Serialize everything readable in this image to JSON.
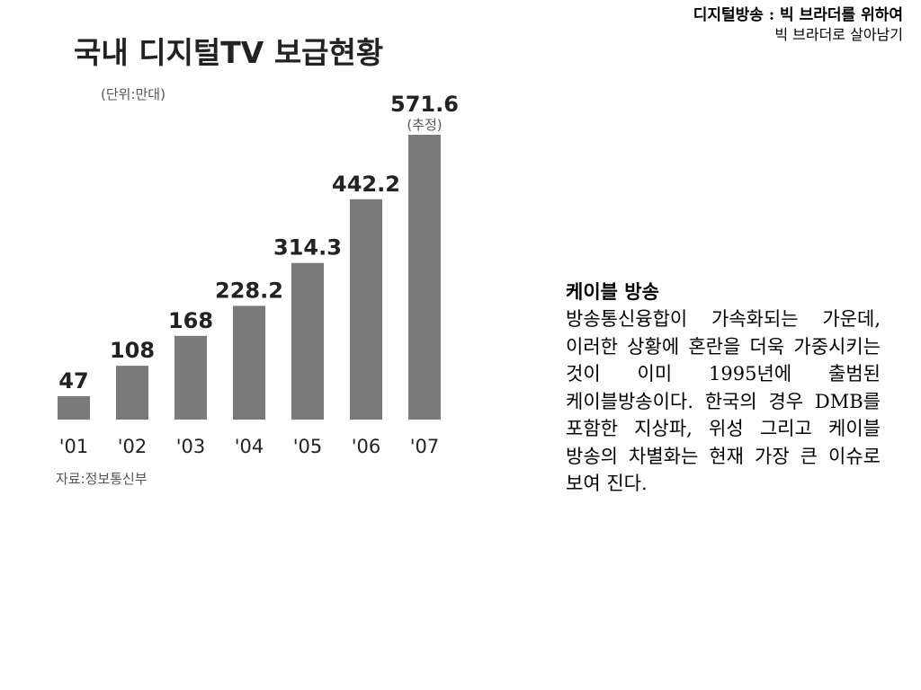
{
  "header": {
    "title": "디지털방송 : 빅 브라더를 위하여",
    "subtitle": "빅 브라더로 살아남기"
  },
  "chart_data": {
    "type": "bar",
    "title": "국내 디지털TV 보급현황",
    "unit_note": "(단위:만대)",
    "source": "자료:정보통신부",
    "categories": [
      "'01",
      "'02",
      "'03",
      "'04",
      "'05",
      "'06",
      "'07"
    ],
    "values": [
      47,
      108,
      168,
      228.2,
      314.3,
      442.2,
      571.6
    ],
    "value_labels": [
      "47",
      "108",
      "168",
      "228.2",
      "314.3",
      "442.2",
      "571.6"
    ],
    "estimate_note": "(추정)",
    "estimate_index": 6,
    "ylim": [
      0,
      571.6
    ],
    "grid": false,
    "colors": {
      "bar": "#7a7a7a",
      "text": "#222222",
      "muted": "#555555"
    }
  },
  "side": {
    "heading": "케이블 방송",
    "body": "방송통신융합이 가속화되는 가운데, 이러한 상황에 혼란을 더욱 가중시키는 것이 이미 1995년에 출범된 케이블방송이다. 한국의 경우 DMB를 포함한 지상파, 위성 그리고 케이블 방송의 차별화는 현재 가장 큰 이슈로 보여 진다."
  }
}
